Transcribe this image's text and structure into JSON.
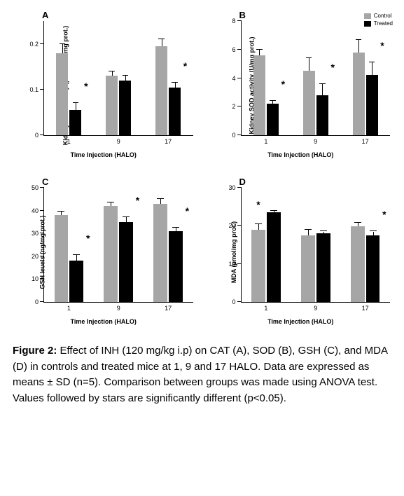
{
  "colors": {
    "control": "#a6a6a6",
    "treated": "#000000",
    "axis": "#000000",
    "background": "#ffffff"
  },
  "legend": {
    "control_label": "Control",
    "treated_label": "Treated"
  },
  "x_label": "Time Injection (HALO)",
  "x_categories": [
    "1",
    "9",
    "17"
  ],
  "panels": {
    "A": {
      "letter": "A",
      "y_label": "Kidney CAT activity (µmol/min/mg prot.)",
      "ylim": [
        0,
        0.25
      ],
      "yticks": [
        0,
        0.1,
        0.2
      ],
      "bar_width": 0.24,
      "groups": [
        {
          "control": 0.18,
          "control_err": 0.02,
          "treated": 0.055,
          "treated_err": 0.015,
          "star": true
        },
        {
          "control": 0.13,
          "control_err": 0.01,
          "treated": 0.12,
          "treated_err": 0.01,
          "star": false
        },
        {
          "control": 0.195,
          "control_err": 0.015,
          "treated": 0.105,
          "treated_err": 0.01,
          "star": true
        }
      ],
      "show_legend": false
    },
    "B": {
      "letter": "B",
      "y_label": "Kidney SOD activity (U/mg prot.)",
      "ylim": [
        0,
        8
      ],
      "yticks": [
        0,
        2,
        4,
        6,
        8
      ],
      "bar_width": 0.24,
      "groups": [
        {
          "control": 5.6,
          "control_err": 0.4,
          "treated": 2.2,
          "treated_err": 0.2,
          "star": true
        },
        {
          "control": 4.5,
          "control_err": 0.9,
          "treated": 2.8,
          "treated_err": 0.8,
          "star": true
        },
        {
          "control": 5.8,
          "control_err": 0.9,
          "treated": 4.2,
          "treated_err": 0.9,
          "star": true
        }
      ],
      "show_legend": true
    },
    "C": {
      "letter": "C",
      "y_label": "GSH levels (ng/mg prot.)",
      "ylim": [
        0,
        50
      ],
      "yticks": [
        0,
        10,
        20,
        30,
        40,
        50
      ],
      "bar_width": 0.28,
      "groups": [
        {
          "control": 38,
          "control_err": 1.5,
          "treated": 18,
          "treated_err": 2.5,
          "star": true
        },
        {
          "control": 42,
          "control_err": 1.5,
          "treated": 35,
          "treated_err": 2,
          "star": true
        },
        {
          "control": 43,
          "control_err": 2,
          "treated": 31,
          "treated_err": 1.5,
          "star": true
        }
      ],
      "show_legend": false
    },
    "D": {
      "letter": "D",
      "y_label": "MDA (µmol/mg prot.)",
      "ylim": [
        0,
        30
      ],
      "yticks": [
        0,
        10,
        20,
        30
      ],
      "bar_width": 0.28,
      "groups": [
        {
          "control": 19,
          "control_err": 1.5,
          "treated": 23.5,
          "treated_err": 0.5,
          "star": true,
          "star_side": "control"
        },
        {
          "control": 17.5,
          "control_err": 1.5,
          "treated": 18,
          "treated_err": 0.5,
          "star": false
        },
        {
          "control": 19.8,
          "control_err": 1,
          "treated": 17.5,
          "treated_err": 1,
          "star": true
        }
      ],
      "show_legend": false
    }
  },
  "caption": {
    "fig_label": "Figure 2:",
    "text": " Effect of INH (120 mg/kg i.p) on CAT (A), SOD (B), GSH (C), and MDA (D) in controls and treated mice at 1, 9 and 17 HALO. Data are expressed as means ± SD (n=5). Comparison between groups was made using ANOVA test. Values followed by stars are significantly different (p<0.05)."
  }
}
